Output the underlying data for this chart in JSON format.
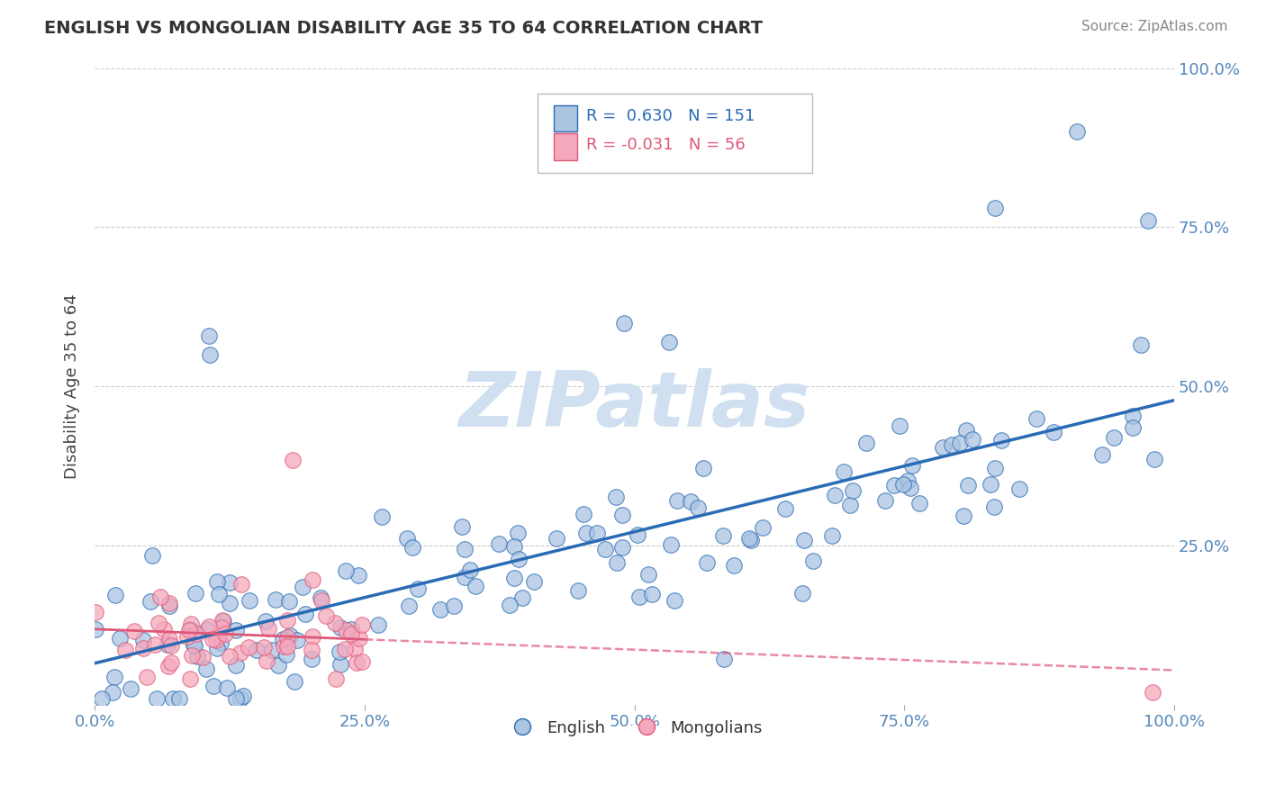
{
  "title": "ENGLISH VS MONGOLIAN DISABILITY AGE 35 TO 64 CORRELATION CHART",
  "source": "Source: ZipAtlas.com",
  "ylabel": "Disability Age 35 to 64",
  "xlim": [
    0.0,
    1.0
  ],
  "ylim": [
    0.0,
    1.0
  ],
  "xtick_labels": [
    "0.0%",
    "25.0%",
    "50.0%",
    "75.0%",
    "100.0%"
  ],
  "xtick_positions": [
    0.0,
    0.25,
    0.5,
    0.75,
    1.0
  ],
  "ytick_labels": [
    "25.0%",
    "50.0%",
    "75.0%",
    "100.0%"
  ],
  "ytick_positions": [
    0.25,
    0.5,
    0.75,
    1.0
  ],
  "english_R": 0.63,
  "english_N": 151,
  "mongolian_R": -0.031,
  "mongolian_N": 56,
  "english_color": "#aac4e2",
  "mongolian_color": "#f5a8bc",
  "english_line_color": "#2a6bb5",
  "mongolian_line_color": "#e05878",
  "title_color": "#333333",
  "source_color": "#888888",
  "axis_label_color": "#5588bb",
  "ylabel_color": "#444444",
  "watermark_color": "#d0e0f0",
  "legend_english_label": "English",
  "legend_mongolian_label": "Mongolians",
  "grid_color": "#cccccc",
  "legend_border_color": "#bbbbbb"
}
